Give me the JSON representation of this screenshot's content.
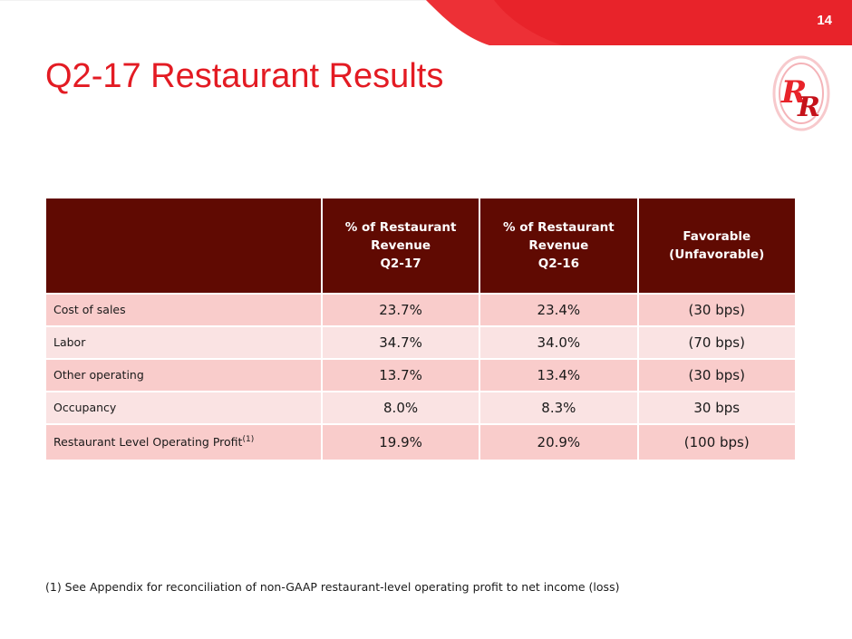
{
  "slide": {
    "page_number": "14",
    "title": "Q2-17 Restaurant Results"
  },
  "brand": {
    "accent_color": "#e31b23",
    "header_color": "#600a02",
    "row_pink": "#f9cccb",
    "row_light": "#fae3e3",
    "logo_icon": "red-robin-rr-logo-icon"
  },
  "table": {
    "headers": {
      "col1": [
        "% of Restaurant",
        "Revenue",
        "Q2-17"
      ],
      "col2": [
        "% of Restaurant",
        "Revenue",
        "Q2-16"
      ],
      "col3": [
        "Favorable",
        "(Unfavorable)"
      ]
    },
    "rows": [
      {
        "label": "Cost of sales",
        "sup": "",
        "q217": "23.7%",
        "q216": "23.4%",
        "fav": "(30 bps)"
      },
      {
        "label": "Labor",
        "sup": "",
        "q217": "34.7%",
        "q216": "34.0%",
        "fav": "(70 bps)"
      },
      {
        "label": "Other operating",
        "sup": "",
        "q217": "13.7%",
        "q216": "13.4%",
        "fav": "(30 bps)"
      },
      {
        "label": "Occupancy",
        "sup": "",
        "q217": "8.0%",
        "q216": "8.3%",
        "fav": "30 bps"
      },
      {
        "label": "Restaurant Level Operating Profit",
        "sup": "(1)",
        "q217": "19.9%",
        "q216": "20.9%",
        "fav": "(100 bps)"
      }
    ]
  },
  "footnote": "(1) See Appendix for reconciliation of non-GAAP restaurant-level operating profit to net income (loss)"
}
